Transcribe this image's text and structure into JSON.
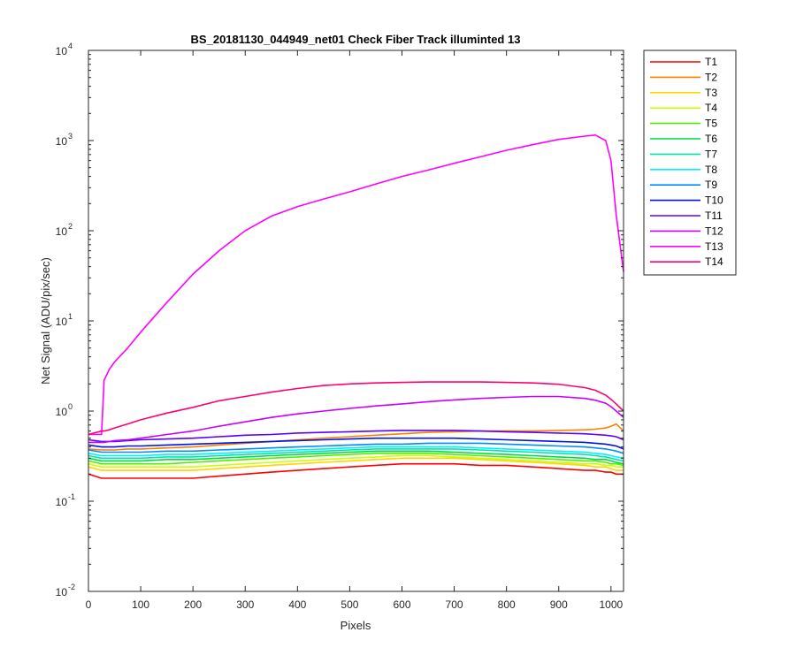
{
  "chart_data": {
    "type": "line",
    "title": "BS_20181130_044949_net01   Check Fiber     Track illuminted 13",
    "xlabel": "Pixels",
    "ylabel": "Net Signal (ADU/pix/sec)",
    "xlim": [
      0,
      1024
    ],
    "ylim": [
      0.01,
      10000
    ],
    "yscale": "log",
    "grid": false,
    "legend_position": "outside-right",
    "x_ticks": [
      "0",
      "100",
      "200",
      "300",
      "400",
      "500",
      "600",
      "700",
      "800",
      "900",
      "1000"
    ],
    "y_ticks": [
      {
        "base": "10",
        "exp": "-2"
      },
      {
        "base": "10",
        "exp": "-1"
      },
      {
        "base": "10",
        "exp": "0"
      },
      {
        "base": "10",
        "exp": "1"
      },
      {
        "base": "10",
        "exp": "2"
      },
      {
        "base": "10",
        "exp": "3"
      },
      {
        "base": "10",
        "exp": "4"
      }
    ],
    "x": [
      0,
      25,
      30,
      40,
      50,
      75,
      100,
      150,
      200,
      250,
      300,
      350,
      400,
      450,
      500,
      550,
      600,
      650,
      700,
      750,
      800,
      850,
      900,
      950,
      970,
      990,
      1000,
      1010,
      1024
    ],
    "series": [
      {
        "name": "T1",
        "color": "#ff0000",
        "values": [
          0.2,
          0.18,
          0.18,
          0.18,
          0.18,
          0.18,
          0.18,
          0.18,
          0.18,
          0.19,
          0.2,
          0.21,
          0.22,
          0.23,
          0.24,
          0.25,
          0.26,
          0.26,
          0.26,
          0.25,
          0.25,
          0.24,
          0.23,
          0.22,
          0.22,
          0.21,
          0.21,
          0.2,
          0.2
        ]
      },
      {
        "name": "T2",
        "color": "#ff7f00",
        "values": [
          0.38,
          0.37,
          0.37,
          0.37,
          0.37,
          0.38,
          0.38,
          0.39,
          0.4,
          0.42,
          0.44,
          0.46,
          0.48,
          0.5,
          0.52,
          0.54,
          0.56,
          0.58,
          0.59,
          0.6,
          0.6,
          0.6,
          0.61,
          0.62,
          0.63,
          0.65,
          0.68,
          0.72,
          0.6
        ]
      },
      {
        "name": "T3",
        "color": "#ffd400",
        "values": [
          0.24,
          0.22,
          0.22,
          0.22,
          0.22,
          0.22,
          0.22,
          0.22,
          0.22,
          0.23,
          0.24,
          0.25,
          0.26,
          0.27,
          0.28,
          0.29,
          0.3,
          0.3,
          0.3,
          0.29,
          0.28,
          0.27,
          0.26,
          0.25,
          0.24,
          0.24,
          0.23,
          0.22,
          0.22
        ]
      },
      {
        "name": "T4",
        "color": "#ccff00",
        "values": [
          0.26,
          0.24,
          0.24,
          0.24,
          0.24,
          0.24,
          0.24,
          0.24,
          0.24,
          0.25,
          0.26,
          0.27,
          0.28,
          0.29,
          0.3,
          0.31,
          0.32,
          0.32,
          0.31,
          0.3,
          0.29,
          0.28,
          0.27,
          0.26,
          0.26,
          0.25,
          0.25,
          0.24,
          0.24
        ]
      },
      {
        "name": "T5",
        "color": "#55ee00",
        "values": [
          0.28,
          0.26,
          0.26,
          0.26,
          0.26,
          0.26,
          0.26,
          0.26,
          0.27,
          0.28,
          0.29,
          0.3,
          0.31,
          0.32,
          0.33,
          0.34,
          0.34,
          0.34,
          0.33,
          0.32,
          0.31,
          0.3,
          0.29,
          0.28,
          0.28,
          0.27,
          0.26,
          0.26,
          0.25
        ]
      },
      {
        "name": "T6",
        "color": "#00dd44",
        "values": [
          0.3,
          0.28,
          0.28,
          0.28,
          0.28,
          0.28,
          0.28,
          0.29,
          0.29,
          0.3,
          0.31,
          0.32,
          0.33,
          0.34,
          0.35,
          0.36,
          0.36,
          0.36,
          0.35,
          0.34,
          0.33,
          0.32,
          0.31,
          0.3,
          0.29,
          0.29,
          0.28,
          0.27,
          0.26
        ]
      },
      {
        "name": "T7",
        "color": "#00e6a8",
        "values": [
          0.32,
          0.3,
          0.3,
          0.3,
          0.3,
          0.3,
          0.3,
          0.31,
          0.31,
          0.32,
          0.33,
          0.34,
          0.35,
          0.36,
          0.37,
          0.38,
          0.38,
          0.38,
          0.38,
          0.37,
          0.36,
          0.35,
          0.34,
          0.33,
          0.32,
          0.31,
          0.3,
          0.29,
          0.28
        ]
      },
      {
        "name": "T8",
        "color": "#00f0ff",
        "values": [
          0.34,
          0.32,
          0.32,
          0.32,
          0.32,
          0.32,
          0.32,
          0.33,
          0.33,
          0.34,
          0.35,
          0.36,
          0.37,
          0.38,
          0.39,
          0.4,
          0.4,
          0.4,
          0.4,
          0.39,
          0.38,
          0.37,
          0.36,
          0.35,
          0.34,
          0.33,
          0.32,
          0.31,
          0.3
        ]
      },
      {
        "name": "T9",
        "color": "#008cff",
        "values": [
          0.37,
          0.35,
          0.35,
          0.35,
          0.35,
          0.35,
          0.35,
          0.36,
          0.36,
          0.37,
          0.38,
          0.39,
          0.4,
          0.41,
          0.42,
          0.43,
          0.43,
          0.44,
          0.44,
          0.44,
          0.43,
          0.42,
          0.41,
          0.4,
          0.39,
          0.38,
          0.37,
          0.36,
          0.34
        ]
      },
      {
        "name": "T10",
        "color": "#0014e6",
        "values": [
          0.42,
          0.4,
          0.4,
          0.4,
          0.4,
          0.41,
          0.41,
          0.42,
          0.43,
          0.44,
          0.45,
          0.46,
          0.47,
          0.48,
          0.49,
          0.5,
          0.5,
          0.5,
          0.5,
          0.49,
          0.48,
          0.47,
          0.46,
          0.45,
          0.44,
          0.43,
          0.42,
          0.41,
          0.38
        ]
      },
      {
        "name": "T11",
        "color": "#5a00ff",
        "values": [
          0.48,
          0.46,
          0.46,
          0.46,
          0.46,
          0.47,
          0.48,
          0.49,
          0.5,
          0.52,
          0.54,
          0.55,
          0.57,
          0.58,
          0.59,
          0.6,
          0.61,
          0.61,
          0.61,
          0.6,
          0.59,
          0.58,
          0.57,
          0.56,
          0.55,
          0.54,
          0.53,
          0.52,
          0.48
        ]
      },
      {
        "name": "T12",
        "color": "#c800ff",
        "values": [
          0.45,
          0.45,
          0.45,
          0.46,
          0.47,
          0.48,
          0.5,
          0.55,
          0.6,
          0.68,
          0.76,
          0.85,
          0.93,
          1.0,
          1.07,
          1.14,
          1.2,
          1.27,
          1.33,
          1.38,
          1.42,
          1.45,
          1.45,
          1.38,
          1.32,
          1.22,
          1.12,
          1.0,
          0.85
        ]
      },
      {
        "name": "T13",
        "color": "#ff00ff",
        "values": [
          0.55,
          0.55,
          2.2,
          2.9,
          3.5,
          5.0,
          7.5,
          16,
          33,
          60,
          100,
          145,
          185,
          225,
          270,
          330,
          400,
          470,
          560,
          660,
          780,
          900,
          1030,
          1120,
          1150,
          1000,
          600,
          150,
          35
        ]
      },
      {
        "name": "T14",
        "color": "#ff0073",
        "values": [
          0.55,
          0.6,
          0.6,
          0.62,
          0.65,
          0.72,
          0.8,
          0.95,
          1.1,
          1.3,
          1.45,
          1.62,
          1.78,
          1.92,
          2.0,
          2.05,
          2.08,
          2.1,
          2.1,
          2.1,
          2.08,
          2.05,
          1.98,
          1.82,
          1.7,
          1.5,
          1.35,
          1.2,
          1.0
        ]
      }
    ]
  }
}
